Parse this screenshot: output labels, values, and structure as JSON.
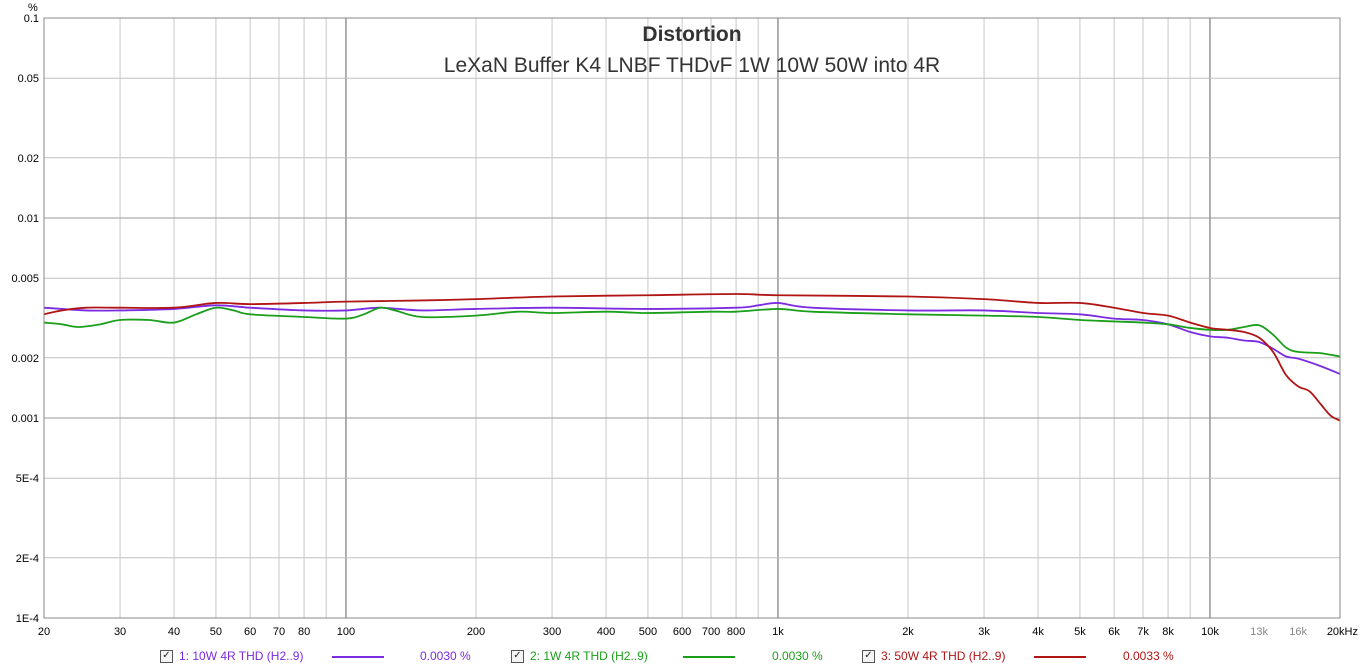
{
  "chart_data": {
    "type": "line",
    "title": "Distortion",
    "subtitle": "LeXaN Buffer K4 LNBF THDvF 1W 10W 50W into 4R",
    "ylabel": "%",
    "xlabel": "",
    "x_unit": "Hz",
    "xscale": "log",
    "yscale": "log",
    "xlim": [
      20,
      20000
    ],
    "ylim": [
      0.0001,
      0.1
    ],
    "grid": true,
    "legend_position": "bottom",
    "y_ticks": [
      {
        "value": 0.1,
        "label": "0.1"
      },
      {
        "value": 0.05,
        "label": "0.05"
      },
      {
        "value": 0.02,
        "label": "0.02"
      },
      {
        "value": 0.01,
        "label": "0.01"
      },
      {
        "value": 0.005,
        "label": "0.005"
      },
      {
        "value": 0.002,
        "label": "0.002"
      },
      {
        "value": 0.001,
        "label": "0.001"
      },
      {
        "value": 0.0005,
        "label": "5E-4"
      },
      {
        "value": 0.0002,
        "label": "2E-4"
      },
      {
        "value": 0.0001,
        "label": "1E-4"
      }
    ],
    "x_ticks": [
      {
        "value": 20,
        "label": "20",
        "minor": false
      },
      {
        "value": 30,
        "label": "30",
        "minor": false
      },
      {
        "value": 40,
        "label": "40",
        "minor": false
      },
      {
        "value": 50,
        "label": "50",
        "minor": false
      },
      {
        "value": 60,
        "label": "60",
        "minor": false
      },
      {
        "value": 70,
        "label": "70",
        "minor": false
      },
      {
        "value": 80,
        "label": "80",
        "minor": false
      },
      {
        "value": 100,
        "label": "100",
        "minor": false
      },
      {
        "value": 200,
        "label": "200",
        "minor": false
      },
      {
        "value": 300,
        "label": "300",
        "minor": false
      },
      {
        "value": 400,
        "label": "400",
        "minor": false
      },
      {
        "value": 500,
        "label": "500",
        "minor": false
      },
      {
        "value": 600,
        "label": "600",
        "minor": false
      },
      {
        "value": 700,
        "label": "700",
        "minor": false
      },
      {
        "value": 800,
        "label": "800",
        "minor": false
      },
      {
        "value": 1000,
        "label": "1k",
        "minor": false
      },
      {
        "value": 2000,
        "label": "2k",
        "minor": false
      },
      {
        "value": 3000,
        "label": "3k",
        "minor": false
      },
      {
        "value": 4000,
        "label": "4k",
        "minor": false
      },
      {
        "value": 5000,
        "label": "5k",
        "minor": false
      },
      {
        "value": 6000,
        "label": "6k",
        "minor": false
      },
      {
        "value": 7000,
        "label": "7k",
        "minor": false
      },
      {
        "value": 8000,
        "label": "8k",
        "minor": false
      },
      {
        "value": 10000,
        "label": "10k",
        "minor": false
      },
      {
        "value": 13000,
        "label": "13k",
        "minor": true
      },
      {
        "value": 16000,
        "label": "16k",
        "minor": true
      },
      {
        "value": 20000,
        "label": "20kHz",
        "minor": false
      }
    ],
    "series": [
      {
        "name": "1: 10W 4R THD (H2..9)",
        "color": "#7b2be0",
        "readout": "0.0030 %",
        "points": [
          [
            20,
            0.00356
          ],
          [
            25,
            0.00345
          ],
          [
            30,
            0.00345
          ],
          [
            40,
            0.00351
          ],
          [
            50,
            0.00366
          ],
          [
            60,
            0.00356
          ],
          [
            80,
            0.00345
          ],
          [
            100,
            0.00345
          ],
          [
            120,
            0.00356
          ],
          [
            150,
            0.00345
          ],
          [
            200,
            0.00351
          ],
          [
            300,
            0.00356
          ],
          [
            500,
            0.00351
          ],
          [
            800,
            0.00356
          ],
          [
            900,
            0.00366
          ],
          [
            1000,
            0.00376
          ],
          [
            1200,
            0.00356
          ],
          [
            2000,
            0.00345
          ],
          [
            3000,
            0.00345
          ],
          [
            4000,
            0.00335
          ],
          [
            5000,
            0.0033
          ],
          [
            6000,
            0.00314
          ],
          [
            7000,
            0.00309
          ],
          [
            8000,
            0.00294
          ],
          [
            9000,
            0.00269
          ],
          [
            10000,
            0.00256
          ],
          [
            11000,
            0.00252
          ],
          [
            12000,
            0.00244
          ],
          [
            13000,
            0.0024
          ],
          [
            14000,
            0.00222
          ],
          [
            15000,
            0.00203
          ],
          [
            16000,
            0.00198
          ],
          [
            18000,
            0.00182
          ],
          [
            20000,
            0.00166
          ]
        ]
      },
      {
        "name": "2: 1W 4R THD (H2..9)",
        "color": "#1b9e1b",
        "readout": "0.0030 %",
        "points": [
          [
            20,
            0.003
          ],
          [
            22,
            0.00294
          ],
          [
            24,
            0.00285
          ],
          [
            27,
            0.00294
          ],
          [
            30,
            0.00309
          ],
          [
            35,
            0.00309
          ],
          [
            40,
            0.003
          ],
          [
            45,
            0.0033
          ],
          [
            50,
            0.00356
          ],
          [
            55,
            0.00345
          ],
          [
            60,
            0.0033
          ],
          [
            80,
            0.0032
          ],
          [
            100,
            0.00314
          ],
          [
            110,
            0.0033
          ],
          [
            120,
            0.00356
          ],
          [
            130,
            0.00345
          ],
          [
            150,
            0.0032
          ],
          [
            200,
            0.00325
          ],
          [
            250,
            0.0034
          ],
          [
            300,
            0.00335
          ],
          [
            400,
            0.0034
          ],
          [
            500,
            0.00335
          ],
          [
            700,
            0.0034
          ],
          [
            800,
            0.0034
          ],
          [
            1000,
            0.00351
          ],
          [
            1200,
            0.0034
          ],
          [
            2000,
            0.0033
          ],
          [
            3000,
            0.00325
          ],
          [
            4000,
            0.0032
          ],
          [
            5000,
            0.00309
          ],
          [
            6000,
            0.00304
          ],
          [
            7000,
            0.003
          ],
          [
            8000,
            0.00294
          ],
          [
            9000,
            0.00282
          ],
          [
            10000,
            0.00276
          ],
          [
            11000,
            0.00276
          ],
          [
            12000,
            0.00285
          ],
          [
            13000,
            0.00291
          ],
          [
            14000,
            0.00261
          ],
          [
            15000,
            0.00225
          ],
          [
            16000,
            0.00214
          ],
          [
            18000,
            0.00211
          ],
          [
            20000,
            0.00203
          ]
        ]
      },
      {
        "name": "3: 50W 4R THD (H2..9)",
        "color": "#b01515",
        "readout": "0.0033 %",
        "points": [
          [
            20,
            0.0033
          ],
          [
            22,
            0.00345
          ],
          [
            25,
            0.00356
          ],
          [
            30,
            0.00356
          ],
          [
            40,
            0.00356
          ],
          [
            50,
            0.00376
          ],
          [
            60,
            0.00371
          ],
          [
            80,
            0.00376
          ],
          [
            100,
            0.00382
          ],
          [
            150,
            0.00387
          ],
          [
            200,
            0.00393
          ],
          [
            300,
            0.00405
          ],
          [
            500,
            0.00411
          ],
          [
            800,
            0.00417
          ],
          [
            1000,
            0.00411
          ],
          [
            2000,
            0.00405
          ],
          [
            3000,
            0.00393
          ],
          [
            4000,
            0.00376
          ],
          [
            5000,
            0.00376
          ],
          [
            6000,
            0.00356
          ],
          [
            7000,
            0.00335
          ],
          [
            8000,
            0.00325
          ],
          [
            9000,
            0.003
          ],
          [
            10000,
            0.00282
          ],
          [
            11000,
            0.00276
          ],
          [
            12000,
            0.00269
          ],
          [
            13000,
            0.00252
          ],
          [
            14000,
            0.00214
          ],
          [
            15000,
            0.00164
          ],
          [
            16000,
            0.00144
          ],
          [
            17000,
            0.00136
          ],
          [
            18000,
            0.00118
          ],
          [
            19000,
            0.00103
          ],
          [
            20000,
            0.00097
          ]
        ]
      }
    ]
  }
}
